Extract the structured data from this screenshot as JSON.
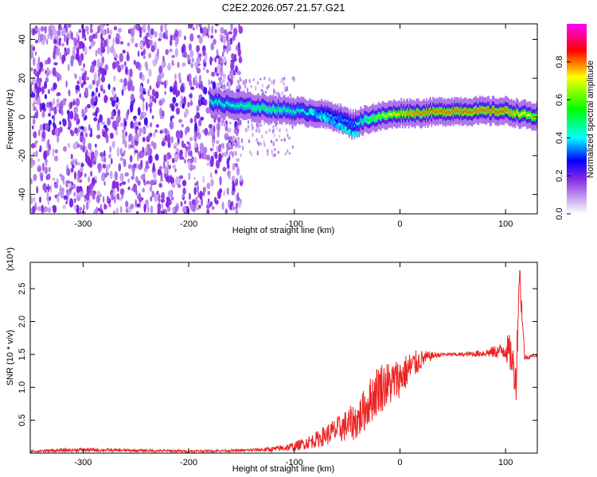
{
  "title": "C2E2.2026.057.21.57.G21",
  "chart_data": [
    {
      "type": "heatmap",
      "xlabel": "Height of straight line (km)",
      "ylabel": "Frequency (Hz)",
      "xlim": [
        -350,
        130
      ],
      "ylim": [
        -50,
        48
      ],
      "xticks": [
        -300,
        -200,
        -100,
        0,
        100
      ],
      "yticks": [
        -40,
        -20,
        0,
        20,
        40
      ],
      "colorbar": {
        "label": "Normalized spectral amplitude",
        "range": [
          0.0,
          1.0
        ],
        "ticks": [
          "0.0",
          "0.2",
          "0.4",
          "0.6",
          "0.8"
        ],
        "colormap": [
          "#ffffff",
          "#8a2be2",
          "#0000ff",
          "#00ffff",
          "#00ff00",
          "#ffff00",
          "#ff0000",
          "#ff00ff"
        ]
      },
      "ridge": {
        "x": [
          -180,
          -160,
          -140,
          -120,
          -100,
          -80,
          -60,
          -45,
          -30,
          -10,
          0,
          20,
          50,
          80,
          100,
          110,
          120,
          130
        ],
        "freq": [
          8,
          6,
          5,
          4,
          3,
          2,
          0,
          -4,
          -1,
          1,
          2,
          2,
          3,
          3,
          3,
          2,
          1,
          0
        ],
        "amplitude": [
          0.45,
          0.45,
          0.5,
          0.5,
          0.45,
          0.4,
          0.35,
          0.35,
          0.55,
          0.7,
          0.75,
          0.8,
          0.8,
          0.8,
          0.8,
          0.75,
          0.7,
          0.7
        ]
      },
      "noise_region_x": [
        -350,
        -170
      ]
    },
    {
      "type": "line",
      "xlabel": "Height of straight line (km)",
      "ylabel": "SNR (10 * v/v)",
      "y_scale_label": "(x10⁴)",
      "xlim": [
        -350,
        130
      ],
      "ylim": [
        0,
        2.9
      ],
      "xticks": [
        -300,
        -200,
        -100,
        0,
        100
      ],
      "yticks": [
        0.5,
        1.0,
        1.5,
        2.0,
        2.5
      ],
      "series": [
        {
          "color": "#ee2222",
          "x": [
            -350,
            -300,
            -250,
            -200,
            -150,
            -120,
            -100,
            -80,
            -60,
            -40,
            -30,
            -20,
            -10,
            0,
            10,
            20,
            30,
            40,
            60,
            80,
            95,
            100,
            105,
            110,
            113,
            118,
            125,
            130
          ],
          "y": [
            0.03,
            0.05,
            0.04,
            0.03,
            0.04,
            0.06,
            0.1,
            0.2,
            0.35,
            0.5,
            0.75,
            1.0,
            1.05,
            1.15,
            1.3,
            1.42,
            1.48,
            1.5,
            1.5,
            1.52,
            1.55,
            1.6,
            1.5,
            1.1,
            2.8,
            1.45,
            1.48,
            1.48
          ],
          "noise_amplitude": [
            0.02,
            0.03,
            0.02,
            0.02,
            0.02,
            0.04,
            0.07,
            0.12,
            0.2,
            0.3,
            0.35,
            0.4,
            0.35,
            0.3,
            0.25,
            0.15,
            0.06,
            0.03,
            0.03,
            0.06,
            0.12,
            0.2,
            0.3,
            0.3,
            0.3,
            0.05,
            0.02,
            0.02
          ]
        }
      ]
    }
  ]
}
